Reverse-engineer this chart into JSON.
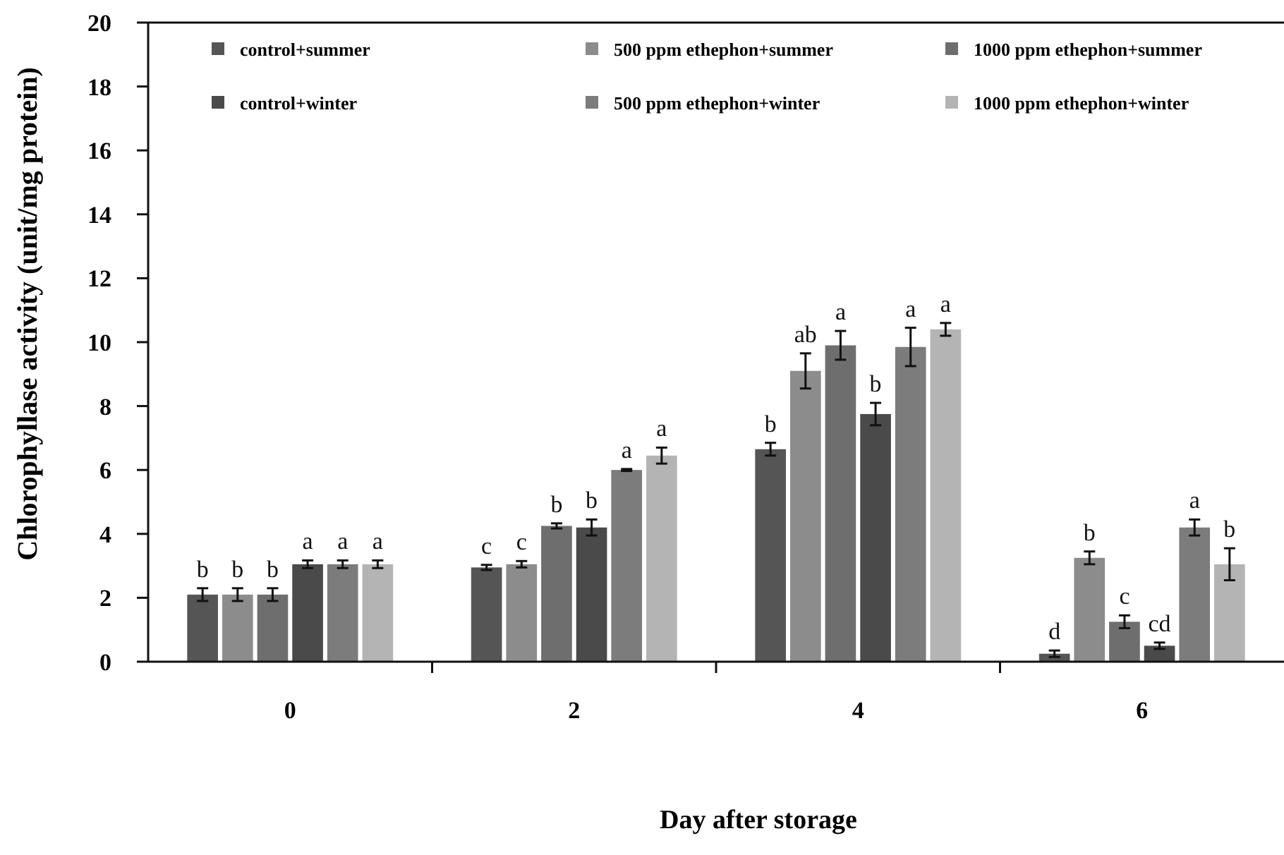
{
  "chart_data": {
    "type": "bar",
    "xlabel": "Day after storage",
    "ylabel": "Chlorophyllase activity (unit/mg protein)",
    "categories": [
      "0",
      "2",
      "4",
      "6"
    ],
    "ylim": [
      0,
      20
    ],
    "yticks": [
      0,
      2,
      4,
      6,
      8,
      10,
      12,
      14,
      16,
      18,
      20
    ],
    "grid": false,
    "legend": "top",
    "series": [
      {
        "name": "control+summer",
        "color": "#555555",
        "values": [
          2.1,
          2.95,
          6.65,
          0.25
        ],
        "errors": [
          0.2,
          0.08,
          0.2,
          0.1
        ],
        "value_labels": [
          "b",
          "c",
          "b",
          "d"
        ]
      },
      {
        "name": "500 ppm ethephon+summer",
        "color": "#8c8c8c",
        "values": [
          2.1,
          3.05,
          9.1,
          3.25
        ],
        "errors": [
          0.2,
          0.1,
          0.55,
          0.2
        ],
        "value_labels": [
          "b",
          "c",
          "ab",
          "b"
        ]
      },
      {
        "name": "1000 ppm ethephon+summer",
        "color": "#6e6e6e",
        "values": [
          2.1,
          4.25,
          9.9,
          1.25
        ],
        "errors": [
          0.2,
          0.08,
          0.45,
          0.2
        ],
        "value_labels": [
          "b",
          "b",
          "a",
          "c"
        ]
      },
      {
        "name": "control+winter",
        "color": "#4a4a4a",
        "values": [
          3.05,
          4.2,
          7.75,
          0.5
        ],
        "errors": [
          0.12,
          0.25,
          0.35,
          0.1
        ],
        "value_labels": [
          "a",
          "b",
          "b",
          "cd"
        ]
      },
      {
        "name": "500 ppm ethephon+winter",
        "color": "#7c7c7c",
        "values": [
          3.05,
          6.0,
          9.85,
          4.2
        ],
        "errors": [
          0.12,
          0.03,
          0.6,
          0.25
        ],
        "value_labels": [
          "a",
          "a",
          "a",
          "a"
        ]
      },
      {
        "name": "1000 ppm ethephon+winter",
        "color": "#b4b4b4",
        "values": [
          3.05,
          6.45,
          10.4,
          3.05
        ],
        "errors": [
          0.12,
          0.25,
          0.2,
          0.5
        ],
        "value_labels": [
          "a",
          "a",
          "a",
          "b"
        ]
      }
    ]
  }
}
